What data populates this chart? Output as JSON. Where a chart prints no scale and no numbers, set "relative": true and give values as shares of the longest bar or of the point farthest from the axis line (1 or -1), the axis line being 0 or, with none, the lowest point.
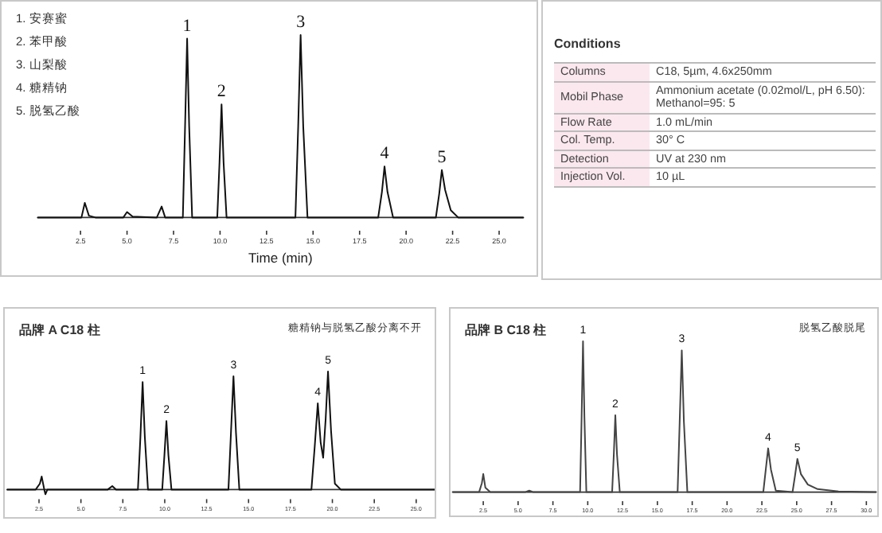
{
  "chart_data": [
    {
      "type": "line",
      "relative": true,
      "xlabel": "Time (min)",
      "xlim": [
        0.2,
        26.3
      ],
      "grid": false,
      "xticks": [
        2.5,
        {
          "value": 5,
          "label": "5.0"
        },
        7.5,
        {
          "value": 10,
          "label": "10.0"
        },
        12.5,
        {
          "value": 15,
          "label": "15.0"
        },
        17.5,
        {
          "value": 20,
          "label": "20.0"
        },
        22.5,
        {
          "value": 25,
          "label": "25.0"
        }
      ],
      "series": [
        {
          "color": "#111111",
          "x": [
            0.2,
            2.55,
            2.73,
            2.95,
            3.3,
            4.8,
            5.0,
            5.3,
            6.6,
            6.86,
            7.05,
            8.0,
            8.12,
            8.23,
            8.34,
            8.5,
            9.85,
            9.97,
            10.08,
            10.19,
            10.35,
            14.05,
            14.2,
            14.33,
            14.47,
            14.7,
            18.5,
            18.7,
            18.84,
            19.0,
            19.3,
            21.6,
            21.78,
            21.92,
            22.1,
            22.4,
            22.8,
            26.3
          ],
          "values": [
            0,
            0,
            0.08,
            0.01,
            0,
            0,
            0.03,
            0.005,
            0,
            0.06,
            0,
            0,
            0.5,
            0.98,
            0.5,
            0,
            0,
            0.3,
            0.62,
            0.3,
            0,
            0,
            0.5,
            1.0,
            0.5,
            0,
            0,
            0.14,
            0.28,
            0.14,
            0,
            0,
            0.13,
            0.26,
            0.15,
            0.04,
            0,
            0
          ]
        }
      ],
      "annotations": [
        "1. 安赛蜜",
        "2. 苯甲酸",
        "3. 山梨酸",
        "4. 糖精钠",
        "5. 脱氢乙酸",
        {
          "text": "1",
          "x": 8.23,
          "y": 0.98
        },
        {
          "text": "2",
          "x": 10.08,
          "y": 0.62
        },
        {
          "text": "3",
          "x": 14.33,
          "y": 1.0
        },
        {
          "text": "4",
          "x": 18.84,
          "y": 0.28
        },
        {
          "text": "5",
          "x": 21.92,
          "y": 0.26
        }
      ]
    },
    {
      "type": "other",
      "title": "Conditions",
      "annotations": [
        "Columns",
        "C18, 5µm, 4.6x250mm",
        "Mobil Phase",
        "Ammonium acetate (0.02mol/L, pH 6.50): Methanol=95: 5",
        "Flow Rate",
        "1.0 mL/min",
        "Col. Temp.",
        "30° C",
        "Detection",
        "UV at 230 nm",
        "Injection Vol.",
        "10 µL"
      ]
    },
    {
      "type": "line",
      "relative": true,
      "title": "品牌 A C18 柱",
      "xlim": [
        0.6,
        26.1
      ],
      "grid": false,
      "xticks": [
        2.5,
        {
          "value": 5,
          "label": "5.0"
        },
        7.5,
        {
          "value": 10,
          "label": "10.0"
        },
        12.5,
        {
          "value": 15,
          "label": "15.0"
        },
        17.5,
        {
          "value": 20,
          "label": "20.0"
        },
        22.5,
        {
          "value": 25,
          "label": "25.0"
        }
      ],
      "series": [
        {
          "color": "#111111",
          "x": [
            0.6,
            2.3,
            2.55,
            2.66,
            2.8,
            2.88,
            3.0,
            6.6,
            6.87,
            7.1,
            8.4,
            8.55,
            8.68,
            8.81,
            9.0,
            9.85,
            9.98,
            10.1,
            10.22,
            10.4,
            13.8,
            13.95,
            14.1,
            14.25,
            14.45,
            18.75,
            18.95,
            19.13,
            19.3,
            19.45,
            19.6,
            19.74,
            19.92,
            20.15,
            20.5,
            26.1
          ],
          "values": [
            0,
            0,
            0.05,
            0.11,
            0.01,
            -0.04,
            0,
            0,
            0.03,
            0,
            0,
            0.45,
            0.91,
            0.45,
            0,
            0,
            0.29,
            0.58,
            0.29,
            0,
            0,
            0.48,
            0.96,
            0.48,
            0,
            0,
            0.37,
            0.73,
            0.4,
            0.27,
            0.6,
            1.0,
            0.5,
            0.05,
            0,
            0
          ]
        }
      ],
      "annotations": [
        "糖精钠与脱氢乙酸分离不开",
        {
          "text": "1",
          "x": 8.68,
          "y": 0.91
        },
        {
          "text": "2",
          "x": 10.1,
          "y": 0.58
        },
        {
          "text": "3",
          "x": 14.1,
          "y": 0.96
        },
        {
          "text": "4",
          "x": 19.13,
          "y": 0.73
        },
        {
          "text": "5",
          "x": 19.74,
          "y": 1.0
        }
      ]
    },
    {
      "type": "line",
      "relative": true,
      "title": "品牌 B C18 柱",
      "xlim": [
        0.3,
        30.7
      ],
      "grid": false,
      "xticks": [
        2.5,
        {
          "value": 5,
          "label": "5.0"
        },
        7.5,
        {
          "value": 10,
          "label": "10.0"
        },
        12.5,
        {
          "value": 15,
          "label": "15.0"
        },
        17.5,
        {
          "value": 20,
          "label": "20.0"
        },
        22.5,
        {
          "value": 25,
          "label": "25.0"
        },
        27.5,
        {
          "value": 30,
          "label": "30.0"
        }
      ],
      "series": [
        {
          "color": "#444444",
          "x": [
            0.3,
            2.2,
            2.4,
            2.5,
            2.65,
            3.0,
            5.5,
            5.8,
            6.1,
            9.45,
            9.56,
            9.66,
            9.76,
            9.9,
            11.75,
            11.87,
            11.98,
            12.1,
            12.3,
            16.45,
            16.6,
            16.75,
            16.9,
            17.15,
            22.6,
            22.78,
            22.95,
            23.15,
            23.5,
            24.7,
            24.88,
            25.05,
            25.3,
            25.8,
            26.5,
            28,
            30.7
          ],
          "values": [
            0,
            0,
            0.06,
            0.12,
            0.03,
            0,
            0,
            0.01,
            0,
            0,
            0.5,
            1.0,
            0.5,
            0,
            0,
            0.25,
            0.51,
            0.25,
            0,
            0,
            0.47,
            0.94,
            0.47,
            0,
            0,
            0.15,
            0.29,
            0.15,
            0.01,
            0,
            0.11,
            0.22,
            0.12,
            0.05,
            0.02,
            0.005,
            0
          ]
        }
      ],
      "annotations": [
        "脱氢乙酸脱尾",
        {
          "text": "1",
          "x": 9.66,
          "y": 1.0
        },
        {
          "text": "2",
          "x": 11.98,
          "y": 0.51
        },
        {
          "text": "3",
          "x": 16.75,
          "y": 0.94
        },
        {
          "text": "4",
          "x": 22.95,
          "y": 0.29
        },
        {
          "text": "5",
          "x": 25.05,
          "y": 0.22
        }
      ]
    }
  ]
}
